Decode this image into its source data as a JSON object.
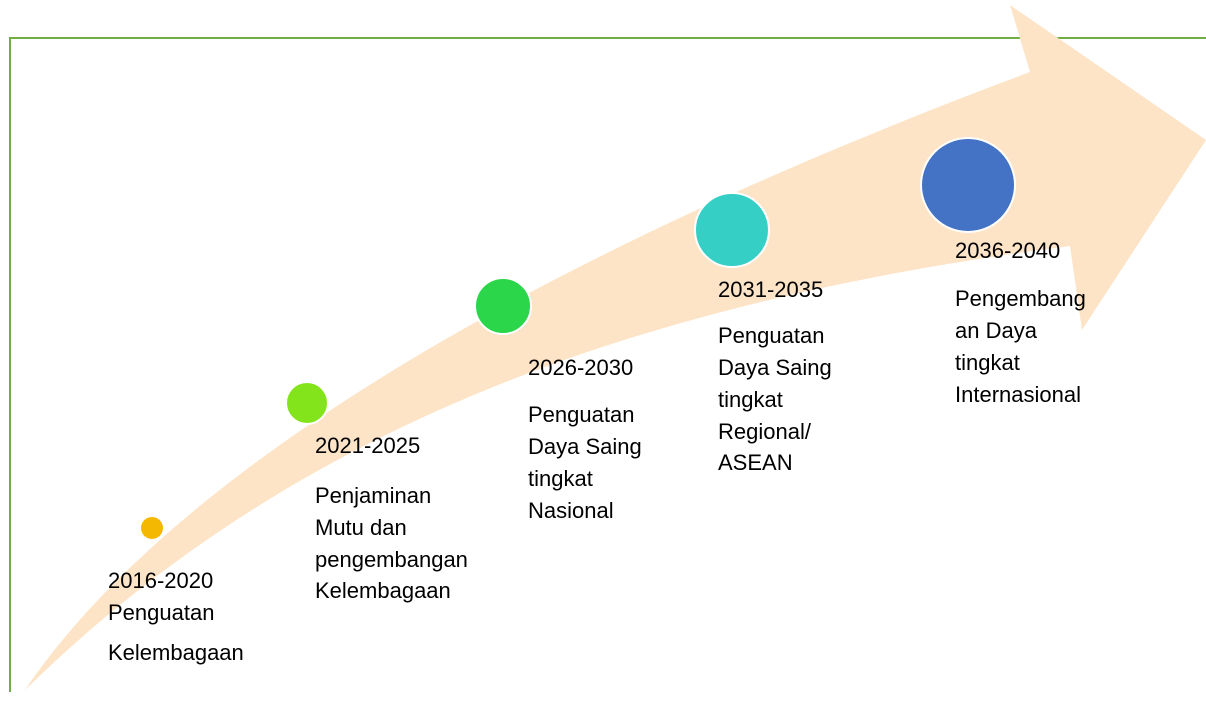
{
  "milestones": [
    {
      "period": "2016-2020",
      "lines": [
        "Penguatan",
        "Kelembagaan"
      ]
    },
    {
      "period": "2021-2025",
      "lines": [
        "Penjaminan",
        "Mutu dan",
        "pengembangan",
        "Kelembagaan"
      ]
    },
    {
      "period": "2026-2030",
      "lines": [
        "Penguatan",
        "Daya Saing",
        "tingkat",
        "Nasional"
      ]
    },
    {
      "period": "2031-2035",
      "lines": [
        "Penguatan",
        "Daya Saing",
        "tingkat",
        "Regional/",
        "ASEAN"
      ]
    },
    {
      "period": "2036-2040",
      "lines": [
        "Pengembang",
        "an Daya",
        "tingkat",
        "Internasional"
      ]
    }
  ]
}
